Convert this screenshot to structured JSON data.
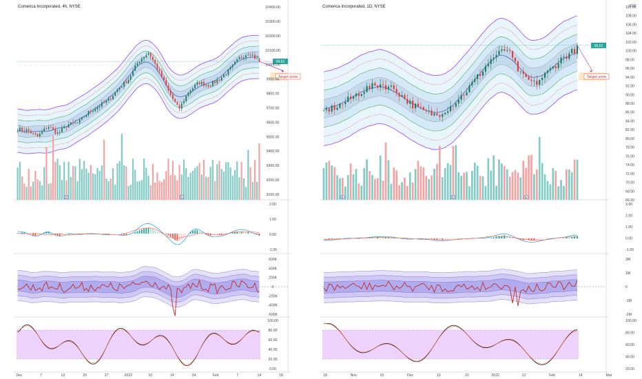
{
  "left": {
    "title": "Comerica Incorporated, 4h, NYSE",
    "price_badge": "99.62",
    "price_ticks": [
      "10400.00",
      "10300.00",
      "10200.00",
      "10100.00",
      "10000.00",
      "9900.00",
      "9800.00",
      "9700.00",
      "9600.00",
      "9500.00",
      "9400.00",
      "9300.00",
      "9200.00",
      "9100.00"
    ],
    "macd_ticks": [
      "2.00",
      "1.00",
      "0.00",
      "-1.00"
    ],
    "cvd_ticks": [
      "600K",
      "400K",
      "200K",
      "0",
      "-200K",
      "-400K",
      "-600K"
    ],
    "stoch_ticks": [
      "100.00",
      "80.00",
      "60.00",
      "40.00",
      "20.00",
      "0.00"
    ],
    "time_ticks": [
      "Dec",
      "7",
      "13",
      "20",
      "27",
      "2022",
      "10",
      "14",
      "24",
      "Feb",
      "7",
      "14",
      "18"
    ],
    "target_label": "Target zone",
    "marker_labels": [
      "D",
      "E",
      "E"
    ]
  },
  "right": {
    "title": "Comerica Incorporated, 1D, NYSE",
    "currency": "USD",
    "price_badge": "99.62",
    "price_ticks": [
      "110.00",
      "108.00",
      "106.00",
      "104.00",
      "102.00",
      "100.00",
      "98.00",
      "96.00",
      "94.00",
      "92.00",
      "90.00",
      "88.00",
      "86.00",
      "84.00",
      "82.00",
      "80.00",
      "78.00",
      "76.00",
      "74.00",
      "72.00",
      "70.00",
      "68.00",
      "66.00"
    ],
    "macd_ticks": [
      "3.00",
      "2.00",
      "1.00",
      "0.00",
      "-1.00"
    ],
    "cvd_ticks": [
      "2M",
      "1M",
      "0",
      "-1M",
      "-2M"
    ],
    "stoch_ticks": [
      "100.00",
      "80.00",
      "60.00",
      "40.00",
      "20.00"
    ],
    "time_ticks": [
      "18",
      "Nov",
      "15",
      "Dec",
      "13",
      "22",
      "2022",
      "12",
      "Feb",
      "14",
      "Mar"
    ],
    "target_label": "Target zone",
    "marker_labels": [
      "E",
      "D",
      "E"
    ]
  },
  "colors": {
    "up": "#26a69a",
    "down": "#ef5350",
    "band_outer": "#a855f7",
    "band_mid": "#4caf50",
    "band_fill": "#e3f2fd",
    "macd_line": "#2196f3",
    "signal_line": "#ff7043",
    "cvd_line": "#c62828",
    "stoch_fill": "#e8c8fb",
    "target": "#f44336"
  },
  "chart_data": [
    {
      "type": "candlestick",
      "title": "Comerica Incorporated, 4h, NYSE",
      "x": [
        "Dec",
        "7",
        "13",
        "20",
        "27",
        "2022",
        "10",
        "14",
        "24",
        "Feb",
        "7",
        "14",
        "18"
      ],
      "ylim": [
        9100,
        10400
      ],
      "waypoints": [
        9570,
        9560,
        9520,
        9590,
        9540,
        9600,
        9610,
        9680,
        9720,
        9760,
        9840,
        9900,
        10020,
        10080,
        9960,
        9820,
        9700,
        9820,
        9880,
        9860,
        9900,
        9960,
        10040,
        10080,
        10020
      ]
    },
    {
      "type": "candlestick",
      "title": "Comerica Incorporated, 1D, NYSE",
      "x": [
        "18",
        "Nov",
        "15",
        "Dec",
        "13",
        "22",
        "2022",
        "12",
        "Feb",
        "14",
        "Mar"
      ],
      "ylim": [
        66,
        110
      ],
      "waypoints": [
        86,
        87,
        89,
        91,
        92,
        91,
        88,
        86,
        85,
        87,
        90,
        94,
        98,
        100,
        94,
        92,
        95,
        98,
        100
      ]
    }
  ]
}
